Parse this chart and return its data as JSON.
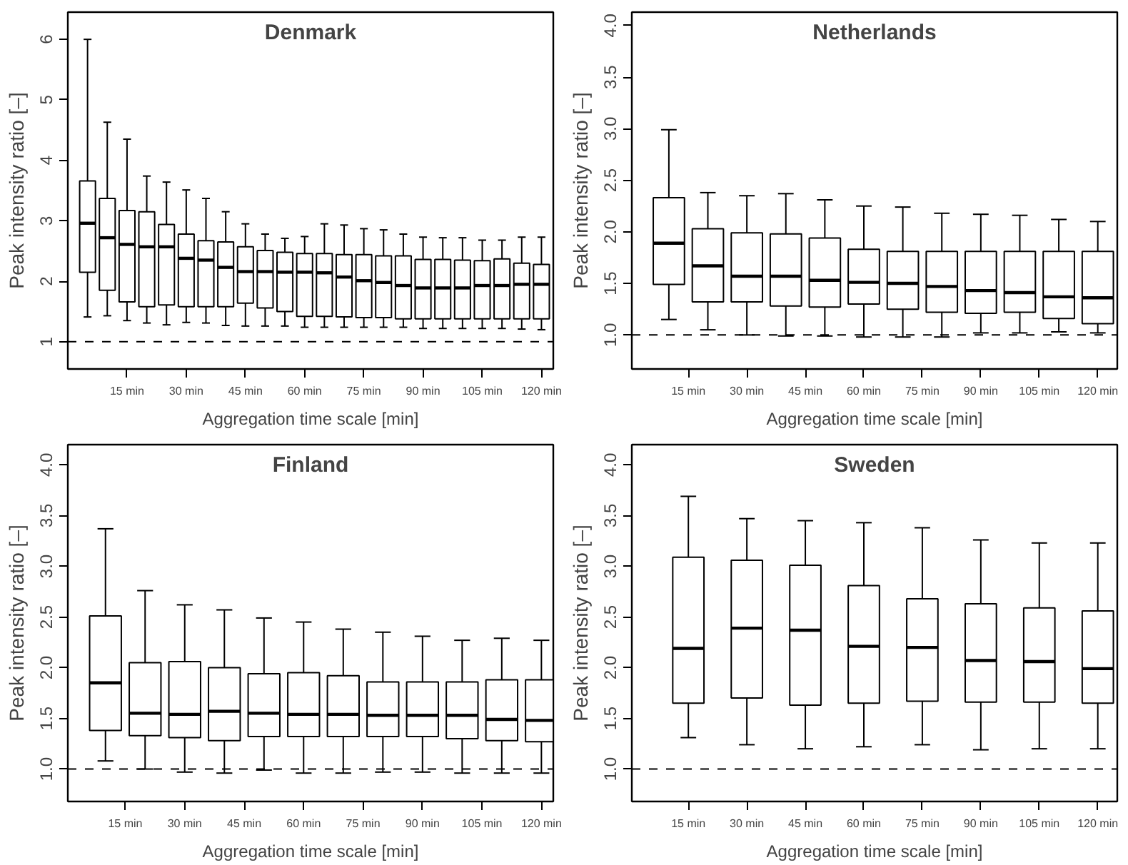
{
  "chart_data": [
    {
      "type": "box",
      "title": "Denmark",
      "xlabel": "Aggregation time scale [min]",
      "ylabel": "Peak intensity ratio [–]",
      "grid": false,
      "x": [
        5,
        10,
        15,
        20,
        25,
        30,
        35,
        40,
        45,
        50,
        55,
        60,
        65,
        70,
        75,
        80,
        85,
        90,
        95,
        100,
        105,
        110,
        115,
        120
      ],
      "boxes": [
        {
          "low": 1.41,
          "q1": 2.15,
          "median": 2.96,
          "q3": 3.66,
          "high": 6.0
        },
        {
          "low": 1.43,
          "q1": 1.85,
          "median": 2.72,
          "q3": 3.37,
          "high": 4.63
        },
        {
          "low": 1.35,
          "q1": 1.66,
          "median": 2.61,
          "q3": 3.17,
          "high": 4.35
        },
        {
          "low": 1.31,
          "q1": 1.58,
          "median": 2.57,
          "q3": 3.15,
          "high": 3.74
        },
        {
          "low": 1.28,
          "q1": 1.61,
          "median": 2.57,
          "q3": 2.94,
          "high": 3.64
        },
        {
          "low": 1.32,
          "q1": 1.58,
          "median": 2.38,
          "q3": 2.78,
          "high": 3.51
        },
        {
          "low": 1.31,
          "q1": 1.58,
          "median": 2.35,
          "q3": 2.67,
          "high": 3.37
        },
        {
          "low": 1.27,
          "q1": 1.58,
          "median": 2.23,
          "q3": 2.65,
          "high": 3.15
        },
        {
          "low": 1.26,
          "q1": 1.64,
          "median": 2.16,
          "q3": 2.57,
          "high": 2.95
        },
        {
          "low": 1.26,
          "q1": 1.56,
          "median": 2.16,
          "q3": 2.51,
          "high": 2.78
        },
        {
          "low": 1.26,
          "q1": 1.5,
          "median": 2.15,
          "q3": 2.48,
          "high": 2.71
        },
        {
          "low": 1.24,
          "q1": 1.42,
          "median": 2.15,
          "q3": 2.46,
          "high": 2.74
        },
        {
          "low": 1.24,
          "q1": 1.42,
          "median": 2.14,
          "q3": 2.46,
          "high": 2.95
        },
        {
          "low": 1.24,
          "q1": 1.41,
          "median": 2.07,
          "q3": 2.44,
          "high": 2.93
        },
        {
          "low": 1.24,
          "q1": 1.4,
          "median": 2.01,
          "q3": 2.44,
          "high": 2.87
        },
        {
          "low": 1.24,
          "q1": 1.4,
          "median": 1.98,
          "q3": 2.42,
          "high": 2.85
        },
        {
          "low": 1.24,
          "q1": 1.38,
          "median": 1.93,
          "q3": 2.42,
          "high": 2.78
        },
        {
          "low": 1.22,
          "q1": 1.38,
          "median": 1.89,
          "q3": 2.36,
          "high": 2.73
        },
        {
          "low": 1.22,
          "q1": 1.38,
          "median": 1.89,
          "q3": 2.36,
          "high": 2.72
        },
        {
          "low": 1.22,
          "q1": 1.38,
          "median": 1.89,
          "q3": 2.35,
          "high": 2.72
        },
        {
          "low": 1.22,
          "q1": 1.38,
          "median": 1.93,
          "q3": 2.34,
          "high": 2.68
        },
        {
          "low": 1.22,
          "q1": 1.38,
          "median": 1.93,
          "q3": 2.37,
          "high": 2.68
        },
        {
          "low": 1.21,
          "q1": 1.38,
          "median": 1.95,
          "q3": 2.3,
          "high": 2.73
        },
        {
          "low": 1.2,
          "q1": 1.38,
          "median": 1.95,
          "q3": 2.28,
          "high": 2.73
        }
      ],
      "xlim": [
        0,
        123
      ],
      "ylim": [
        0.55,
        6.45
      ],
      "xticks": [
        {
          "value": 15,
          "label": "15 min"
        },
        {
          "value": 30,
          "label": "30 min"
        },
        {
          "value": 45,
          "label": "45 min"
        },
        {
          "value": 60,
          "label": "60 min"
        },
        {
          "value": 75,
          "label": "75 min"
        },
        {
          "value": 90,
          "label": "90 min"
        },
        {
          "value": 105,
          "label": "105 min"
        },
        {
          "value": 120,
          "label": "120 min"
        }
      ],
      "yticks": [
        1,
        2,
        3,
        4,
        5,
        6
      ],
      "ref_lines": [
        {
          "axis": "y",
          "value": 1,
          "line_style": "dashed"
        }
      ]
    },
    {
      "type": "box",
      "title": "Netherlands",
      "xlabel": "Aggregation time scale [min]",
      "ylabel": "Peak intensity ratio [–]",
      "grid": false,
      "x": [
        10,
        20,
        30,
        40,
        50,
        60,
        70,
        80,
        90,
        100,
        110,
        120
      ],
      "boxes": [
        {
          "low": 1.15,
          "q1": 1.49,
          "median": 1.89,
          "q3": 2.33,
          "high": 2.99
        },
        {
          "low": 1.05,
          "q1": 1.32,
          "median": 1.67,
          "q3": 2.03,
          "high": 2.38
        },
        {
          "low": 1.0,
          "q1": 1.32,
          "median": 1.57,
          "q3": 1.99,
          "high": 2.35
        },
        {
          "low": 0.99,
          "q1": 1.28,
          "median": 1.57,
          "q3": 1.98,
          "high": 2.37
        },
        {
          "low": 0.99,
          "q1": 1.27,
          "median": 1.53,
          "q3": 1.94,
          "high": 2.31
        },
        {
          "low": 0.98,
          "q1": 1.3,
          "median": 1.51,
          "q3": 1.83,
          "high": 2.25
        },
        {
          "low": 0.98,
          "q1": 1.25,
          "median": 1.5,
          "q3": 1.81,
          "high": 2.24
        },
        {
          "low": 0.98,
          "q1": 1.22,
          "median": 1.47,
          "q3": 1.81,
          "high": 2.18
        },
        {
          "low": 1.02,
          "q1": 1.21,
          "median": 1.43,
          "q3": 1.81,
          "high": 2.17
        },
        {
          "low": 1.02,
          "q1": 1.22,
          "median": 1.41,
          "q3": 1.81,
          "high": 2.16
        },
        {
          "low": 1.03,
          "q1": 1.16,
          "median": 1.37,
          "q3": 1.81,
          "high": 2.12
        },
        {
          "low": 1.02,
          "q1": 1.11,
          "median": 1.36,
          "q3": 1.81,
          "high": 2.1
        }
      ],
      "xlim": [
        0.5,
        125
      ],
      "ylim": [
        0.67,
        4.13
      ],
      "xticks": [
        {
          "value": 15,
          "label": "15 min"
        },
        {
          "value": 30,
          "label": "30 min"
        },
        {
          "value": 45,
          "label": "45 min"
        },
        {
          "value": 60,
          "label": "60 min"
        },
        {
          "value": 75,
          "label": "75 min"
        },
        {
          "value": 90,
          "label": "90 min"
        },
        {
          "value": 105,
          "label": "105 min"
        },
        {
          "value": 120,
          "label": "120 min"
        }
      ],
      "yticks": [
        {
          "value": 1,
          "label": "1.0"
        },
        {
          "value": 1.5,
          "label": "1.5"
        },
        {
          "value": 2,
          "label": "2.0"
        },
        {
          "value": 2.5,
          "label": "2.5"
        },
        {
          "value": 3,
          "label": "3.0"
        },
        {
          "value": 3.5,
          "label": "3.5"
        },
        {
          "value": 4,
          "label": "4.0"
        }
      ],
      "ref_lines": [
        {
          "axis": "y",
          "value": 1,
          "line_style": "dashed"
        }
      ]
    },
    {
      "type": "box",
      "title": "Finland",
      "xlabel": "Aggregation time scale [min]",
      "ylabel": "Peak intensity ratio [–]",
      "grid": false,
      "x": [
        10,
        20,
        30,
        40,
        50,
        60,
        70,
        80,
        90,
        100,
        110,
        120
      ],
      "boxes": [
        {
          "low": 1.08,
          "q1": 1.38,
          "median": 1.85,
          "q3": 2.51,
          "high": 3.37
        },
        {
          "low": 1.0,
          "q1": 1.33,
          "median": 1.55,
          "q3": 2.05,
          "high": 2.76
        },
        {
          "low": 0.97,
          "q1": 1.31,
          "median": 1.54,
          "q3": 2.06,
          "high": 2.62
        },
        {
          "low": 0.96,
          "q1": 1.28,
          "median": 1.57,
          "q3": 2.0,
          "high": 2.57
        },
        {
          "low": 0.99,
          "q1": 1.32,
          "median": 1.55,
          "q3": 1.94,
          "high": 2.49
        },
        {
          "low": 0.96,
          "q1": 1.32,
          "median": 1.54,
          "q3": 1.95,
          "high": 2.45
        },
        {
          "low": 0.96,
          "q1": 1.32,
          "median": 1.54,
          "q3": 1.92,
          "high": 2.38
        },
        {
          "low": 0.97,
          "q1": 1.32,
          "median": 1.53,
          "q3": 1.86,
          "high": 2.35
        },
        {
          "low": 0.97,
          "q1": 1.32,
          "median": 1.53,
          "q3": 1.86,
          "high": 2.31
        },
        {
          "low": 0.96,
          "q1": 1.3,
          "median": 1.53,
          "q3": 1.86,
          "high": 2.27
        },
        {
          "low": 0.96,
          "q1": 1.28,
          "median": 1.49,
          "q3": 1.88,
          "high": 2.29
        },
        {
          "low": 0.96,
          "q1": 1.27,
          "median": 1.48,
          "q3": 1.88,
          "high": 2.27
        }
      ],
      "xlim": [
        0.5,
        123
      ],
      "ylim": [
        0.68,
        4.2
      ],
      "xticks": [
        {
          "value": 15,
          "label": "15 min"
        },
        {
          "value": 30,
          "label": "30 min"
        },
        {
          "value": 45,
          "label": "45 min"
        },
        {
          "value": 60,
          "label": "60 min"
        },
        {
          "value": 75,
          "label": "75 min"
        },
        {
          "value": 90,
          "label": "90 min"
        },
        {
          "value": 105,
          "label": "105 min"
        },
        {
          "value": 120,
          "label": "120 min"
        }
      ],
      "yticks": [
        {
          "value": 1,
          "label": "1.0"
        },
        {
          "value": 1.5,
          "label": "1.5"
        },
        {
          "value": 2,
          "label": "2.0"
        },
        {
          "value": 2.5,
          "label": "2.5"
        },
        {
          "value": 3,
          "label": "3.0"
        },
        {
          "value": 3.5,
          "label": "3.5"
        },
        {
          "value": 4,
          "label": "4.0"
        }
      ],
      "ref_lines": [
        {
          "axis": "y",
          "value": 1,
          "line_style": "dashed"
        }
      ]
    },
    {
      "type": "box",
      "title": "Sweden",
      "xlabel": "Aggregation time scale [min]",
      "ylabel": "Peak intensity ratio [–]",
      "grid": false,
      "x": [
        15,
        30,
        45,
        60,
        75,
        90,
        105,
        120
      ],
      "boxes": [
        {
          "low": 1.31,
          "q1": 1.65,
          "median": 2.19,
          "q3": 3.09,
          "high": 3.69
        },
        {
          "low": 1.24,
          "q1": 1.7,
          "median": 2.39,
          "q3": 3.06,
          "high": 3.47
        },
        {
          "low": 1.2,
          "q1": 1.63,
          "median": 2.37,
          "q3": 3.01,
          "high": 3.45
        },
        {
          "low": 1.22,
          "q1": 1.65,
          "median": 2.21,
          "q3": 2.81,
          "high": 3.43
        },
        {
          "low": 1.24,
          "q1": 1.67,
          "median": 2.2,
          "q3": 2.68,
          "high": 3.38
        },
        {
          "low": 1.19,
          "q1": 1.66,
          "median": 2.07,
          "q3": 2.63,
          "high": 3.26
        },
        {
          "low": 1.2,
          "q1": 1.66,
          "median": 2.06,
          "q3": 2.59,
          "high": 3.23
        },
        {
          "low": 1.2,
          "q1": 1.65,
          "median": 1.99,
          "q3": 2.56,
          "high": 3.23
        }
      ],
      "xlim": [
        0.5,
        125
      ],
      "ylim": [
        0.68,
        4.2
      ],
      "xticks": [
        {
          "value": 15,
          "label": "15 min"
        },
        {
          "value": 30,
          "label": "30 min"
        },
        {
          "value": 45,
          "label": "45 min"
        },
        {
          "value": 60,
          "label": "60 min"
        },
        {
          "value": 75,
          "label": "75 min"
        },
        {
          "value": 90,
          "label": "90 min"
        },
        {
          "value": 105,
          "label": "105 min"
        },
        {
          "value": 120,
          "label": "120 min"
        }
      ],
      "yticks": [
        {
          "value": 1,
          "label": "1.0"
        },
        {
          "value": 1.5,
          "label": "1.5"
        },
        {
          "value": 2,
          "label": "2.0"
        },
        {
          "value": 2.5,
          "label": "2.5"
        },
        {
          "value": 3,
          "label": "3.0"
        },
        {
          "value": 3.5,
          "label": "3.5"
        },
        {
          "value": 4,
          "label": "4.0"
        }
      ],
      "ref_lines": [
        {
          "axis": "y",
          "value": 1,
          "line_style": "dashed"
        }
      ]
    }
  ]
}
